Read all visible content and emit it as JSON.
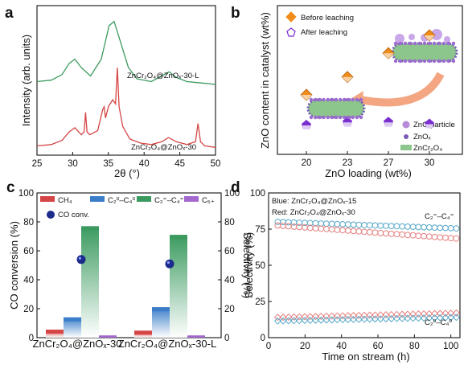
{
  "panels": {
    "a": {
      "label": "a",
      "series_label_top": "ZnCr₂O₄@ZnOₓ-30-L",
      "series_label_bottom": "ZnCr₂O₄@ZnOₓ-30"
    },
    "b": {
      "label": "b",
      "legend_before": "Before leaching",
      "legend_after": "After leaching",
      "legend_zno_particle": "ZnO particle",
      "legend_znox": "ZnOₓ",
      "legend_spinel": "ZnCr₂O₄"
    },
    "c": {
      "label": "c",
      "legend_ch4": "CH₄",
      "legend_c2c4_0": "C₂⁰–C₄⁰",
      "legend_c2c4_eq": "C₂⁼–C₄⁼",
      "legend_c5": "C₅₊",
      "legend_co": "CO conv."
    },
    "d": {
      "label": "d",
      "note_blue": "Blue: ZnCr₂O₄@ZnOₓ-15",
      "note_red": "Red: ZnCr₂O₄@ZnOₓ-30",
      "label_olefin": "C₂⁼–C₄⁼",
      "label_paraffin": "C₂⁰–C₄⁰"
    }
  },
  "colors": {
    "green": "#3b9a5f",
    "red": "#d64545",
    "orange": "#f08c1a",
    "purple": "#7a2fd0",
    "blue": "#3b7dc9",
    "teal": "#58a8c8",
    "lightpurple": "#a469cf",
    "pink": "#e58080",
    "spinel": "#8dc68c"
  },
  "chart_data": [
    {
      "panel": "a",
      "type": "line",
      "xlabel": "2θ (°)",
      "ylabel": "Intensity (arb. units)",
      "xlim": [
        25,
        50
      ],
      "xticks": [
        25,
        30,
        35,
        40,
        45,
        50
      ],
      "series": [
        {
          "name": "ZnCr₂O₄@ZnOₓ-30-L",
          "color": "#3b9a5f",
          "offset": 0.46,
          "x": [
            25,
            27,
            28.5,
            29.5,
            30.3,
            31.2,
            32.5,
            34,
            35.1,
            35.8,
            36.6,
            37.8,
            39,
            41,
            42.5,
            43.5,
            44.5,
            46,
            48,
            50
          ],
          "y": [
            0.02,
            0.03,
            0.07,
            0.15,
            0.18,
            0.12,
            0.06,
            0.18,
            0.42,
            0.45,
            0.32,
            0.12,
            0.04,
            0.02,
            0.06,
            0.09,
            0.05,
            0.02,
            0.01,
            0.0
          ]
        },
        {
          "name": "ZnCr₂O₄@ZnOₓ-30",
          "color": "#d64545",
          "offset": 0.0,
          "x": [
            25,
            27,
            28.5,
            29.5,
            30.3,
            31.2,
            31.6,
            31.8,
            32.0,
            32.4,
            33.5,
            34.2,
            34.4,
            34.6,
            35.0,
            35.6,
            36.0,
            36.25,
            36.5,
            37.0,
            38,
            39.5,
            41,
            42.5,
            43.4,
            44.5,
            46,
            47.2,
            47.55,
            47.9,
            48.5,
            50
          ],
          "y": [
            0.02,
            0.03,
            0.06,
            0.12,
            0.15,
            0.1,
            0.12,
            0.26,
            0.12,
            0.1,
            0.13,
            0.28,
            0.3,
            0.22,
            0.3,
            0.35,
            0.32,
            0.58,
            0.3,
            0.16,
            0.07,
            0.04,
            0.03,
            0.05,
            0.08,
            0.05,
            0.03,
            0.05,
            0.18,
            0.05,
            0.02,
            0.01
          ]
        }
      ]
    },
    {
      "panel": "b",
      "type": "scatter",
      "xlabel": "ZnO loading (wt%)",
      "ylabel": "ZnO content in catalyst (wt%)",
      "categories": [
        "20",
        "23",
        "27",
        "30"
      ],
      "ylim": [
        10,
        35
      ],
      "series": [
        {
          "name": "Before leaching",
          "values": [
            20,
            23,
            27,
            30
          ],
          "color": "#f08c1a",
          "marker": "diamond"
        },
        {
          "name": "After leaching",
          "values": [
            15,
            15.5,
            15.5,
            15.2
          ],
          "color": "#7a2fd0",
          "marker": "pentagon"
        }
      ]
    },
    {
      "panel": "c",
      "type": "bar",
      "categories": [
        "ZnCr₂O₄@ZnOₓ-30",
        "ZnCr₂O₄@ZnOₓ-30-L"
      ],
      "ylabel": "CO conversion (%)",
      "y2label": "Selectivity (%)",
      "ylim": [
        0,
        100
      ],
      "y2lim": [
        0,
        100
      ],
      "yticks": [
        0,
        20,
        40,
        60,
        80,
        100
      ],
      "y2ticks": [
        0,
        20,
        40,
        60,
        80,
        100
      ],
      "series": [
        {
          "name": "CH₄",
          "values": [
            5.5,
            4.8
          ],
          "color": "#d64545"
        },
        {
          "name": "C₂⁰–C₄⁰",
          "values": [
            14,
            21
          ],
          "color": "#3b7dc9"
        },
        {
          "name": "C₂⁼–C₄⁼",
          "values": [
            77,
            71
          ],
          "color": "#3b9a5f"
        },
        {
          "name": "C₅₊",
          "values": [
            1.5,
            1.5
          ],
          "color": "#a469cf"
        }
      ],
      "co_conversion": [
        54,
        51
      ]
    },
    {
      "panel": "d",
      "type": "scatter",
      "xlabel": "Time on stream (h)",
      "ylabel": "Selectivity (%)",
      "xlim": [
        0,
        105
      ],
      "ylim": [
        0,
        100
      ],
      "xticks": [
        0,
        20,
        40,
        60,
        80,
        100
      ],
      "yticks": [
        0,
        25,
        50,
        75,
        100
      ],
      "series": [
        {
          "group": "olefin",
          "sample": "ZnCr₂O₄@ZnOₓ-15",
          "color": "#58a8c8",
          "marker": "circle",
          "start": 80,
          "end": 75.5
        },
        {
          "group": "olefin",
          "sample": "ZnCr₂O₄@ZnOₓ-30",
          "color": "#e58080",
          "marker": "circle",
          "start": 77.5,
          "end": 68.5
        },
        {
          "group": "paraffin",
          "sample": "ZnCr₂O₄@ZnOₓ-30",
          "color": "#e58080",
          "marker": "diamond",
          "start": 14,
          "end": 17
        },
        {
          "group": "paraffin",
          "sample": "ZnCr₂O₄@ZnOₓ-15",
          "color": "#58a8c8",
          "marker": "diamond",
          "start": 11.5,
          "end": 14
        }
      ],
      "time_start": 5,
      "time_end": 103
    }
  ]
}
